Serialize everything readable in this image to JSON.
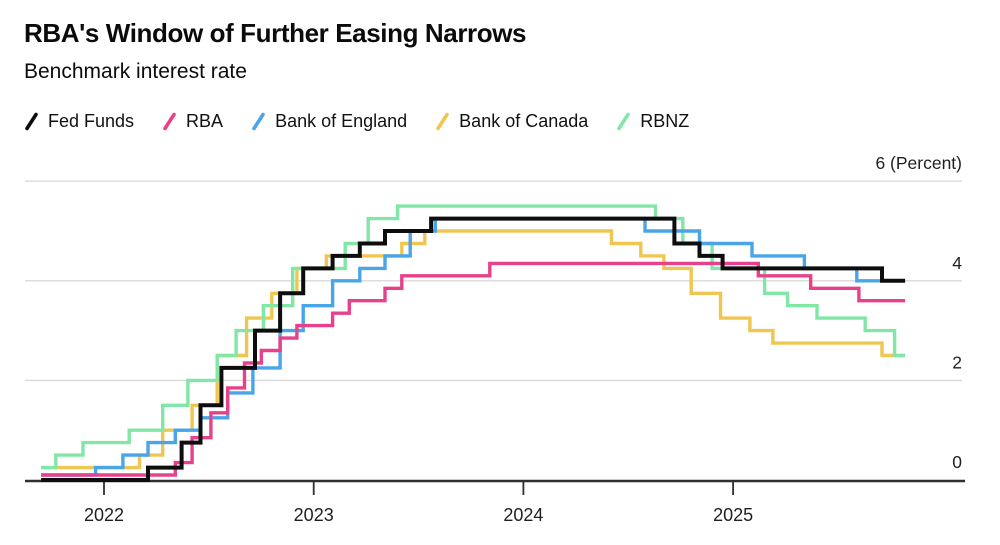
{
  "header": {
    "title": "RBA's Window of Further Easing Narrows",
    "subtitle": "Benchmark interest rate"
  },
  "style": {
    "background": "#ffffff",
    "grid_color": "#d9d9d9",
    "axis_color": "#2f2f2f",
    "label_color": "#1f1f1f",
    "title_color": "#0b0b0b"
  },
  "chart_data": {
    "type": "line",
    "step": true,
    "title": "RBA's Window of Further Easing Narrows",
    "subtitle": "Benchmark interest rate",
    "unit": "Percent",
    "legend_position": "top",
    "grid": "horizontal",
    "x_domain": [
      2021.7,
      2025.82
    ],
    "y_domain": [
      0,
      6
    ],
    "y_ticks": [
      {
        "v": 0,
        "label": "0"
      },
      {
        "v": 2,
        "label": "2"
      },
      {
        "v": 4,
        "label": "4"
      },
      {
        "v": 6,
        "label": "6 (Percent)"
      }
    ],
    "x_ticks": [
      {
        "v": 2022,
        "label": "2022"
      },
      {
        "v": 2023,
        "label": "2023"
      },
      {
        "v": 2024,
        "label": "2024"
      },
      {
        "v": 2025,
        "label": "2025"
      }
    ],
    "series": [
      {
        "name": "Bank of Canada",
        "key": "bank-of-canada",
        "color": "#f0c653",
        "width": 3.4,
        "points": [
          [
            2021.7,
            0.25
          ],
          [
            2022.17,
            0.5
          ],
          [
            2022.28,
            1.0
          ],
          [
            2022.42,
            1.5
          ],
          [
            2022.54,
            2.5
          ],
          [
            2022.68,
            3.25
          ],
          [
            2022.8,
            3.75
          ],
          [
            2022.92,
            4.25
          ],
          [
            2023.06,
            4.5
          ],
          [
            2023.42,
            4.75
          ],
          [
            2023.53,
            5.0
          ],
          [
            2024.42,
            4.75
          ],
          [
            2024.56,
            4.5
          ],
          [
            2024.67,
            4.25
          ],
          [
            2024.8,
            3.75
          ],
          [
            2024.94,
            3.25
          ],
          [
            2025.08,
            3.0
          ],
          [
            2025.19,
            2.75
          ],
          [
            2025.71,
            2.5
          ]
        ]
      },
      {
        "name": "RBNZ",
        "key": "rbnz",
        "color": "#82e6a7",
        "width": 3.4,
        "points": [
          [
            2021.7,
            0.25
          ],
          [
            2021.77,
            0.5
          ],
          [
            2021.9,
            0.75
          ],
          [
            2022.12,
            1.0
          ],
          [
            2022.28,
            1.5
          ],
          [
            2022.4,
            2.0
          ],
          [
            2022.54,
            2.5
          ],
          [
            2022.63,
            3.0
          ],
          [
            2022.76,
            3.5
          ],
          [
            2022.9,
            4.25
          ],
          [
            2023.15,
            4.75
          ],
          [
            2023.26,
            5.25
          ],
          [
            2023.4,
            5.5
          ],
          [
            2024.63,
            5.25
          ],
          [
            2024.76,
            4.75
          ],
          [
            2024.9,
            4.25
          ],
          [
            2025.15,
            3.75
          ],
          [
            2025.26,
            3.5
          ],
          [
            2025.4,
            3.25
          ],
          [
            2025.63,
            3.0
          ],
          [
            2025.77,
            2.5
          ]
        ]
      },
      {
        "name": "Bank of England",
        "key": "bank-of-england",
        "color": "#4aa5e8",
        "width": 3.4,
        "points": [
          [
            2021.7,
            0.1
          ],
          [
            2021.96,
            0.25
          ],
          [
            2022.09,
            0.5
          ],
          [
            2022.21,
            0.75
          ],
          [
            2022.34,
            1.0
          ],
          [
            2022.46,
            1.25
          ],
          [
            2022.59,
            1.75
          ],
          [
            2022.71,
            2.25
          ],
          [
            2022.84,
            3.0
          ],
          [
            2022.95,
            3.5
          ],
          [
            2023.09,
            4.0
          ],
          [
            2023.22,
            4.25
          ],
          [
            2023.34,
            4.5
          ],
          [
            2023.46,
            5.0
          ],
          [
            2023.58,
            5.25
          ],
          [
            2024.58,
            5.0
          ],
          [
            2024.84,
            4.75
          ],
          [
            2025.09,
            4.5
          ],
          [
            2025.34,
            4.25
          ],
          [
            2025.59,
            4.0
          ]
        ]
      },
      {
        "name": "RBA",
        "key": "rba",
        "color": "#e8418c",
        "width": 3.4,
        "points": [
          [
            2021.7,
            0.1
          ],
          [
            2022.34,
            0.35
          ],
          [
            2022.42,
            0.85
          ],
          [
            2022.51,
            1.35
          ],
          [
            2022.59,
            1.85
          ],
          [
            2022.67,
            2.35
          ],
          [
            2022.75,
            2.6
          ],
          [
            2022.84,
            2.85
          ],
          [
            2022.92,
            3.1
          ],
          [
            2023.09,
            3.35
          ],
          [
            2023.17,
            3.6
          ],
          [
            2023.34,
            3.85
          ],
          [
            2023.42,
            4.1
          ],
          [
            2023.84,
            4.35
          ],
          [
            2025.12,
            4.1
          ],
          [
            2025.37,
            3.85
          ],
          [
            2025.6,
            3.6
          ]
        ]
      },
      {
        "name": "Fed Funds",
        "key": "fed-funds",
        "color": "#0d0d0d",
        "width": 4,
        "points": [
          [
            2021.7,
            0.0
          ],
          [
            2022.21,
            0.25
          ],
          [
            2022.37,
            0.75
          ],
          [
            2022.46,
            1.5
          ],
          [
            2022.56,
            2.25
          ],
          [
            2022.72,
            3.0
          ],
          [
            2022.84,
            3.75
          ],
          [
            2022.95,
            4.25
          ],
          [
            2023.09,
            4.5
          ],
          [
            2023.22,
            4.75
          ],
          [
            2023.34,
            5.0
          ],
          [
            2023.56,
            5.25
          ],
          [
            2024.72,
            4.75
          ],
          [
            2024.84,
            4.5
          ],
          [
            2024.95,
            4.25
          ],
          [
            2025.71,
            4.0
          ]
        ]
      }
    ],
    "legend_order": [
      "fed-funds",
      "rba",
      "bank-of-england",
      "bank-of-canada",
      "rbnz"
    ]
  }
}
